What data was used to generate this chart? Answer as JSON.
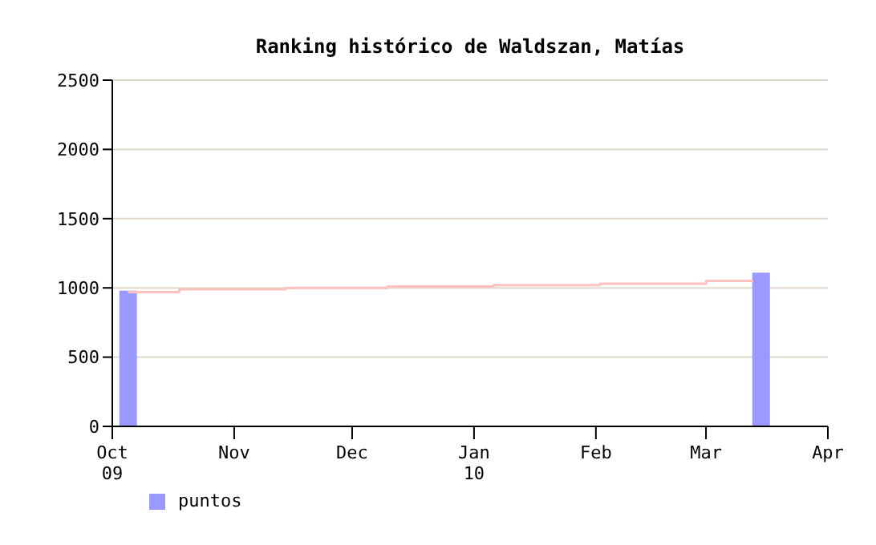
{
  "chart_data": {
    "type": "bar",
    "title": "Ranking histórico de Waldszan, Matías",
    "xlim": [
      "2009-10-01",
      "2010-04-01"
    ],
    "xticks": [
      {
        "value": "2009-10-01",
        "label": "Oct\n09"
      },
      {
        "value": "2009-11-01",
        "label": "Nov"
      },
      {
        "value": "2009-12-01",
        "label": "Dec"
      },
      {
        "value": "2010-01-01",
        "label": "Jan\n10"
      },
      {
        "value": "2010-02-01",
        "label": "Feb"
      },
      {
        "value": "2010-03-01",
        "label": "Mar"
      },
      {
        "value": "2010-04-01",
        "label": "Apr"
      }
    ],
    "ylim": [
      0,
      2500
    ],
    "yticks": [
      0,
      500,
      1000,
      1500,
      2000,
      2500
    ],
    "series": [
      {
        "name": "puntos",
        "color": "#9999ff",
        "x": [
          "2009-10-05",
          "2010-03-15"
        ],
        "values": [
          980,
          1110
        ]
      },
      {
        "type": "step",
        "color": "#ffc0c0",
        "x": [
          "2009-10-05",
          "2009-10-18",
          "2009-11-14",
          "2009-12-10",
          "2010-01-06",
          "2010-02-02",
          "2010-03-01",
          "2010-03-13"
        ],
        "values": [
          970,
          990,
          1000,
          1010,
          1020,
          1030,
          1050,
          1050
        ]
      }
    ],
    "grid": "y",
    "legend": "bottom left"
  }
}
